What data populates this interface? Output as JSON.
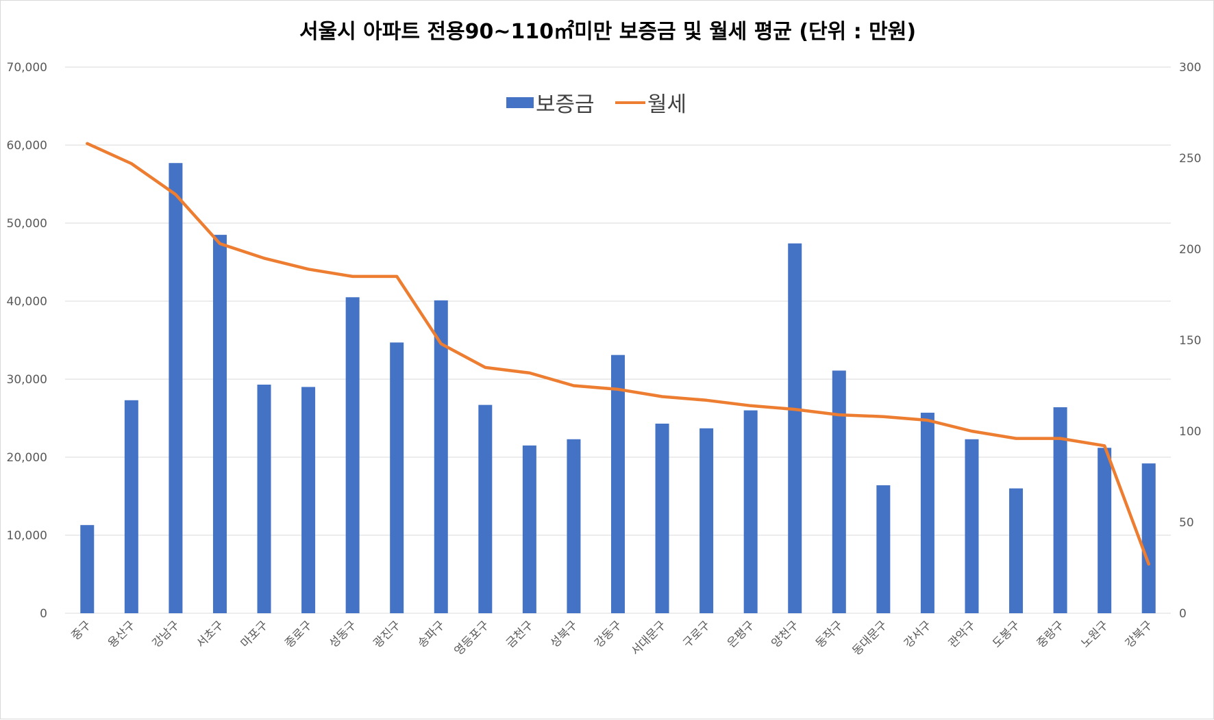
{
  "chart_data": {
    "type": "bar",
    "title": "서울시 아파트 전용90~110㎡미만 보증금 및 월세 평균 (단위 : 만원)",
    "categories": [
      "중구",
      "용산구",
      "강남구",
      "서초구",
      "마포구",
      "종로구",
      "성동구",
      "광진구",
      "송파구",
      "영등포구",
      "금천구",
      "성북구",
      "강동구",
      "서대문구",
      "구로구",
      "은평구",
      "양천구",
      "동작구",
      "동대문구",
      "강서구",
      "관악구",
      "도봉구",
      "중랑구",
      "노원구",
      "강북구"
    ],
    "series": [
      {
        "name": "보증금",
        "type": "bar",
        "axis": "left",
        "color": "#4472C4",
        "values": [
          11300,
          27300,
          57700,
          48500,
          29300,
          29000,
          40500,
          34700,
          40100,
          26700,
          21500,
          22300,
          33100,
          24300,
          23700,
          26000,
          47400,
          31100,
          16400,
          25700,
          22300,
          16000,
          26400,
          21200,
          19200
        ]
      },
      {
        "name": "월세",
        "type": "line",
        "axis": "right",
        "color": "#ED7D31",
        "values": [
          258,
          247,
          230,
          203,
          195,
          189,
          185,
          185,
          148,
          135,
          132,
          125,
          123,
          119,
          117,
          114,
          112,
          109,
          108,
          106,
          100,
          96,
          96,
          92,
          27
        ]
      }
    ],
    "y_left": {
      "min": 0,
      "max": 70000,
      "ticks": [
        "0",
        "10,000",
        "20,000",
        "30,000",
        "40,000",
        "50,000",
        "60,000",
        "70,000"
      ]
    },
    "y_right": {
      "min": 0,
      "max": 300,
      "ticks": [
        "0",
        "50",
        "100",
        "150",
        "200",
        "250",
        "300"
      ]
    },
    "grid": true,
    "legend_position": "top-center",
    "colors": {
      "bar": "#4472C4",
      "line": "#ED7D31",
      "grid": "#d9d9d9",
      "tick_text": "#595959"
    }
  }
}
